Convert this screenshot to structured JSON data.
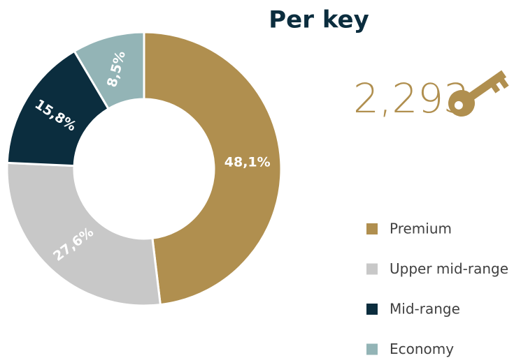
{
  "chart_data": {
    "type": "pie",
    "donut": true,
    "title": "Per key",
    "annotation": "2,293",
    "categories": [
      "Premium",
      "Upper mid-range",
      "Mid-range",
      "Economy"
    ],
    "values": [
      48.1,
      27.6,
      15.8,
      8.5
    ],
    "value_labels": [
      "48,1%",
      "27,6%",
      "15,8%",
      "8,5%"
    ],
    "colors": [
      "#b08f4f",
      "#c8c8c8",
      "#0b2d3e",
      "#93b4b6"
    ],
    "legend": "right"
  }
}
